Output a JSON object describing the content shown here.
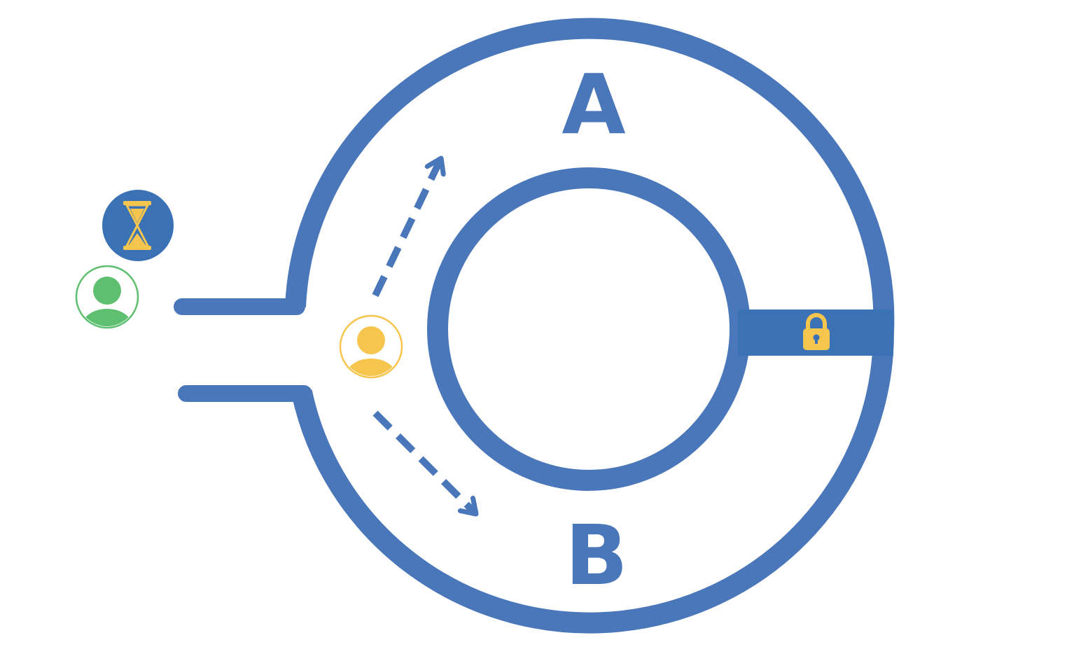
{
  "diagram": {
    "regions": [
      {
        "id": "a",
        "label": "A"
      },
      {
        "id": "b",
        "label": "B"
      }
    ],
    "icons": {
      "waiting": "hourglass-icon",
      "queued_person": "person-icon",
      "active_person": "person-icon",
      "blocked_passage": "lock-icon",
      "path_to_a": "dashed-arrow",
      "path_to_b": "dashed-arrow"
    },
    "colors": {
      "track": "#4A76BA",
      "lock_bar": "#3A72B5",
      "waiting_badge": "#3A72B5",
      "yellow": "#F5C54E",
      "green": "#5DBF6F",
      "background": "#FFFFFF"
    }
  }
}
